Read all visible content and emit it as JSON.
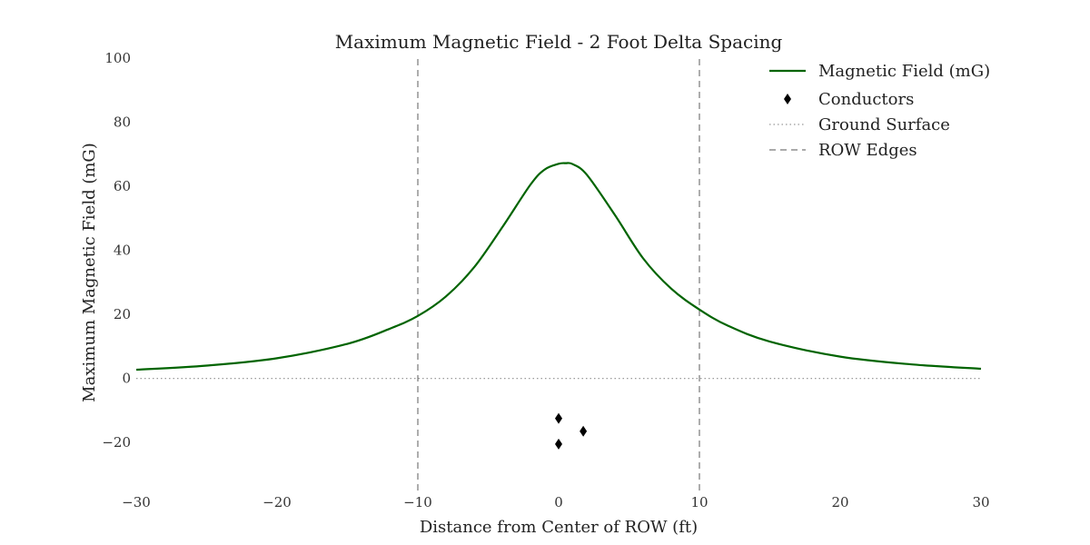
{
  "chart_data": {
    "type": "line",
    "title": "Maximum Magnetic Field - 2 Foot Delta Spacing",
    "xlabel": "Distance from Center of ROW (ft)",
    "ylabel": "Maximum Magnetic Field (mG)",
    "xlim": [
      -30,
      30
    ],
    "ylim": [
      -35,
      100
    ],
    "x_ticks": [
      -30,
      -20,
      -10,
      0,
      10,
      20,
      30
    ],
    "x_tick_labels": [
      "−30",
      "−20",
      "−10",
      "0",
      "10",
      "20",
      "30"
    ],
    "y_ticks": [
      -20,
      0,
      20,
      40,
      60,
      80,
      100
    ],
    "y_tick_labels": [
      "−20",
      "0",
      "20",
      "40",
      "60",
      "80",
      "100"
    ],
    "grid": false,
    "legend_placement": "top-right",
    "colors": {
      "field": "#006400",
      "conductors": "#000000",
      "ground": "#999999",
      "row_edges": "#777777"
    },
    "series": [
      {
        "name": "Magnetic Field (mG)",
        "style": "solid",
        "x": [
          -30,
          -25,
          -20,
          -15,
          -12,
          -10,
          -8,
          -6,
          -4,
          -2,
          -1,
          0,
          0.5,
          1,
          2,
          4,
          6,
          8,
          10,
          12,
          15,
          20,
          25,
          30
        ],
        "y": [
          2.7,
          4.0,
          6.3,
          10.8,
          15.5,
          19.5,
          25.6,
          34.7,
          47.2,
          60.5,
          65.2,
          67.0,
          67.2,
          66.9,
          63.6,
          51.0,
          37.5,
          28.0,
          21.5,
          16.5,
          11.5,
          6.8,
          4.4,
          3.0
        ]
      },
      {
        "name": "Conductors",
        "style": "markers",
        "marker": "diamond",
        "x": [
          0,
          0,
          1.75
        ],
        "y": [
          -12.5,
          -20.5,
          -16.5
        ]
      },
      {
        "name": "Ground Surface",
        "style": "dotted",
        "x": [
          -30,
          30
        ],
        "y": [
          0,
          0
        ]
      },
      {
        "name": "ROW Edges",
        "style": "dashed",
        "x": [
          -10,
          10
        ]
      }
    ]
  }
}
